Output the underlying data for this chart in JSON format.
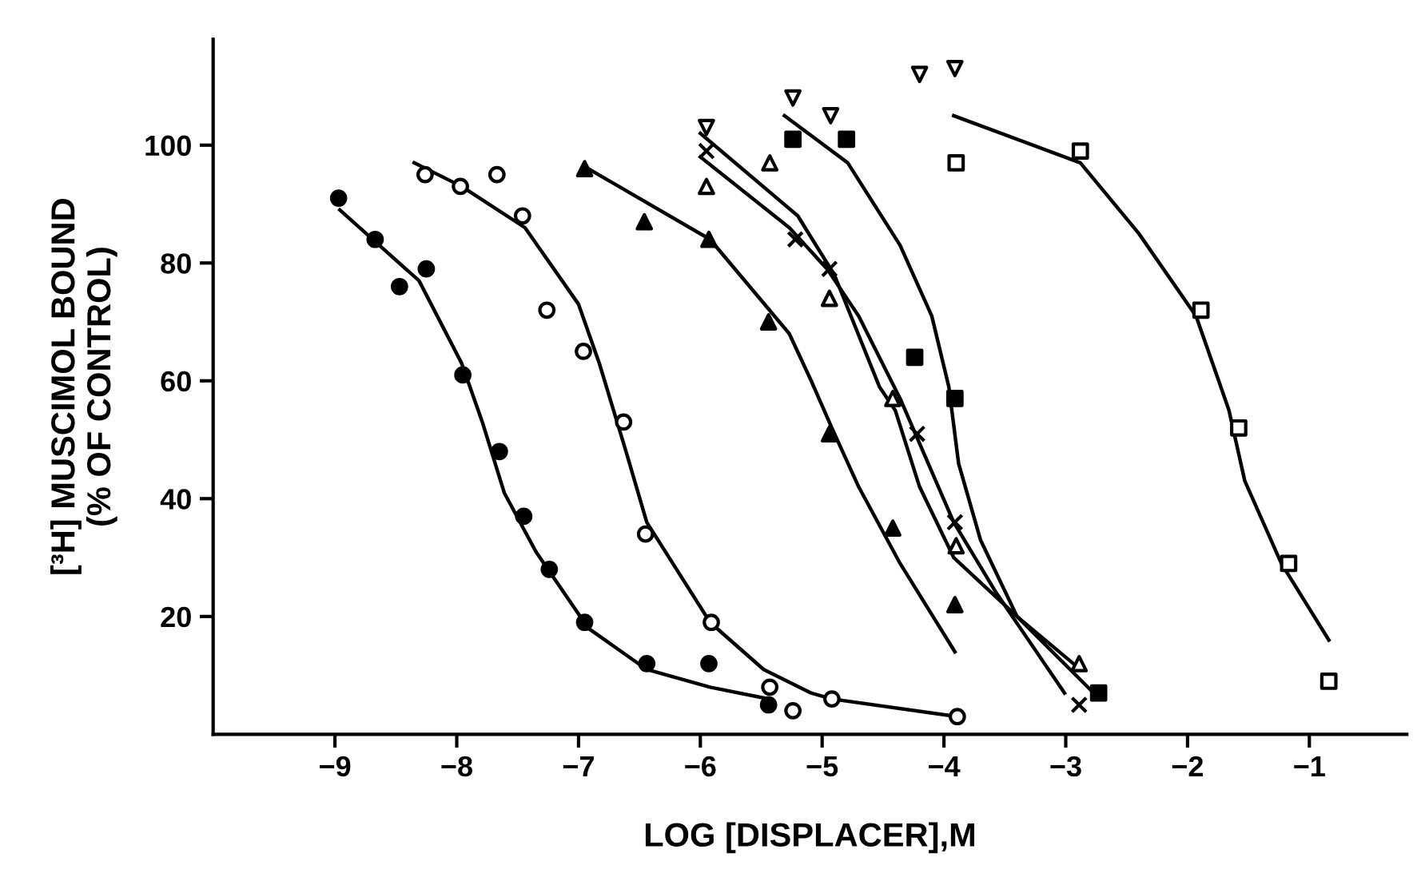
{
  "chart_data": {
    "type": "scatter",
    "xlabel": "LOG [DISPLACER],M",
    "ylabel": "[³H] MUSCIMOL BOUND\n(% OF CONTROL)",
    "xlim": [
      -10,
      -0.2
    ],
    "ylim": [
      0,
      118
    ],
    "xticks": [
      -9,
      -8,
      -7,
      -6,
      -5,
      -4,
      -3,
      -2,
      -1
    ],
    "yticks": [
      20,
      40,
      60,
      80,
      100
    ],
    "grid": false,
    "series": [
      {
        "type": "line",
        "color": "#000000",
        "x": [
          -8.96,
          -8.31,
          -7.96,
          -7.79,
          -7.61,
          -7.35,
          -6.92,
          -6.44,
          -5.92,
          -5.44
        ],
        "values": [
          89,
          77,
          63,
          53,
          41,
          31,
          18,
          11,
          8,
          6
        ]
      },
      {
        "type": "line",
        "color": "#000000",
        "x": [
          -8.35,
          -7.96,
          -7.44,
          -7.0,
          -6.83,
          -6.61,
          -6.44,
          -5.92,
          -5.48,
          -5.09,
          -4.92,
          -3.89
        ],
        "values": [
          97,
          93,
          86,
          73,
          63,
          48,
          36,
          19,
          11,
          7,
          6,
          3
        ]
      },
      {
        "type": "line",
        "color": "#000000",
        "x": [
          -6.92,
          -5.92,
          -5.27,
          -5.09,
          -4.92,
          -4.7,
          -4.36,
          -3.91
        ],
        "values": [
          96,
          84,
          68,
          60,
          52,
          42,
          29,
          14
        ]
      },
      {
        "type": "line",
        "color": "#000000",
        "x": [
          -6.0,
          -5.2,
          -4.9,
          -4.53,
          -4.4,
          -4.2,
          -3.92,
          -3.4,
          -2.88
        ],
        "values": [
          102,
          88,
          78,
          59,
          55,
          42,
          30,
          20,
          11
        ]
      },
      {
        "type": "line",
        "color": "#000000",
        "x": [
          -6.0,
          -5.27,
          -4.96,
          -4.7,
          -4.36,
          -3.92,
          -3.57,
          -3.01
        ],
        "values": [
          98,
          86,
          79,
          71,
          57,
          36,
          24,
          7
        ]
      },
      {
        "type": "line",
        "color": "#000000",
        "x": [
          -5.31,
          -4.79,
          -4.36,
          -4.1,
          -3.96,
          -3.88,
          -3.7,
          -3.4,
          -2.77
        ],
        "values": [
          105,
          97,
          83,
          71,
          59,
          46,
          33,
          20,
          7
        ]
      },
      {
        "type": "line",
        "color": "#000000",
        "x": [
          -3.92,
          -2.88,
          -2.4,
          -1.93,
          -1.66,
          -1.53,
          -1.23,
          -0.84
        ],
        "values": [
          105,
          97,
          85,
          71,
          55,
          43,
          29,
          16
        ]
      },
      {
        "marker": "circle",
        "color": "#000000",
        "x": [
          -8.97,
          -8.67,
          -8.47,
          -8.25,
          -7.95,
          -7.65,
          -7.45,
          -7.24,
          -6.95,
          -6.44,
          -5.93,
          -5.44
        ],
        "values": [
          91,
          84,
          76,
          79,
          61,
          48,
          37,
          28,
          19,
          12,
          12,
          5
        ]
      },
      {
        "marker": "circle-open",
        "color": "#000000",
        "x": [
          -8.26,
          -7.97,
          -7.67,
          -7.46,
          -7.26,
          -6.96,
          -6.63,
          -6.45,
          -5.91,
          -5.43,
          -5.24,
          -4.92,
          -3.89
        ],
        "values": [
          95,
          93,
          95,
          88,
          72,
          65,
          53,
          34,
          19,
          8,
          4,
          6,
          3
        ]
      },
      {
        "marker": "triangle",
        "color": "#000000",
        "x": [
          -6.95,
          -6.46,
          -5.93,
          -5.44,
          -4.94,
          -4.42,
          -3.91
        ],
        "values": [
          96,
          87,
          84,
          70,
          51,
          35,
          22
        ]
      },
      {
        "marker": "triangle-open",
        "color": "#000000",
        "x": [
          -5.95,
          -5.43,
          -4.94,
          -4.42,
          -3.9,
          -2.89
        ],
        "values": [
          93,
          97,
          74,
          57,
          32,
          12
        ]
      },
      {
        "marker": "cross",
        "color": "#000000",
        "x": [
          -5.95,
          -5.22,
          -4.94,
          -4.22,
          -3.91,
          -2.89
        ],
        "values": [
          99,
          84,
          79,
          51,
          36,
          5
        ]
      },
      {
        "marker": "square",
        "color": "#000000",
        "x": [
          -5.24,
          -4.8,
          -4.24,
          -3.91,
          -2.73
        ],
        "values": [
          101,
          101,
          64,
          57,
          7
        ]
      },
      {
        "marker": "triangle_down-open",
        "color": "#000000",
        "x": [
          -5.95,
          -5.24,
          -4.93,
          -4.2,
          -3.91
        ],
        "values": [
          103,
          108,
          105,
          112,
          113
        ]
      },
      {
        "marker": "square-open",
        "color": "#000000",
        "x": [
          -3.9,
          -2.88,
          -1.89,
          -1.58,
          -1.17,
          -0.84
        ],
        "values": [
          97,
          99,
          72,
          52,
          29,
          9
        ]
      }
    ]
  }
}
